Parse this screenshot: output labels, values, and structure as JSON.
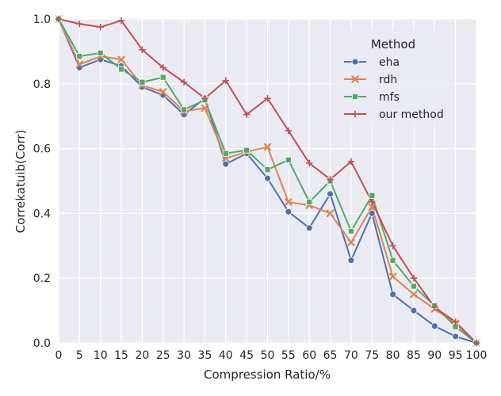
{
  "chart_data": {
    "type": "line",
    "title": "",
    "xlabel": "Compression Ratio/%",
    "ylabel": "Correkatuib(Corr)",
    "x": [
      0,
      5,
      10,
      15,
      20,
      25,
      30,
      35,
      40,
      45,
      50,
      55,
      60,
      65,
      70,
      75,
      80,
      85,
      90,
      95,
      100
    ],
    "xlim": [
      0,
      100
    ],
    "ylim": [
      0.0,
      1.0
    ],
    "xticks": [
      "0",
      "5",
      "10",
      "15",
      "20",
      "25",
      "30",
      "35",
      "40",
      "45",
      "50",
      "55",
      "60",
      "65",
      "70",
      "75",
      "80",
      "85",
      "90",
      "95",
      "100"
    ],
    "yticks": [
      "0.0",
      "0.2",
      "0.4",
      "0.6",
      "0.8",
      "1.0"
    ],
    "grid": true,
    "legend": {
      "title": "Method",
      "placement": "upper-right"
    },
    "series": [
      {
        "name": "eha",
        "color": "#4c72b0",
        "marker": "circle",
        "values": [
          1.0,
          0.85,
          0.875,
          0.855,
          0.79,
          0.765,
          0.705,
          0.755,
          0.552,
          0.585,
          0.508,
          0.405,
          0.355,
          0.46,
          0.255,
          0.4,
          0.15,
          0.1,
          0.052,
          0.02,
          0.0
        ]
      },
      {
        "name": "rdh",
        "color": "#dd8452",
        "marker": "x",
        "values": [
          1.0,
          0.86,
          0.885,
          0.875,
          0.795,
          0.775,
          0.715,
          0.725,
          0.57,
          0.59,
          0.605,
          0.435,
          0.425,
          0.4,
          0.31,
          0.42,
          0.205,
          0.15,
          0.105,
          0.06,
          0.0
        ]
      },
      {
        "name": "mfs",
        "color": "#55a868",
        "marker": "square",
        "values": [
          1.0,
          0.885,
          0.895,
          0.845,
          0.805,
          0.82,
          0.72,
          0.75,
          0.585,
          0.595,
          0.535,
          0.565,
          0.435,
          0.5,
          0.345,
          0.455,
          0.255,
          0.175,
          0.115,
          0.05,
          0.0
        ]
      },
      {
        "name": "our method",
        "color": "#c44e52",
        "marker": "plus",
        "values": [
          1.0,
          0.985,
          0.975,
          0.995,
          0.905,
          0.85,
          0.805,
          0.755,
          0.81,
          0.705,
          0.755,
          0.655,
          0.555,
          0.505,
          0.56,
          0.435,
          0.3,
          0.2,
          0.11,
          0.065,
          0.0
        ]
      }
    ]
  }
}
